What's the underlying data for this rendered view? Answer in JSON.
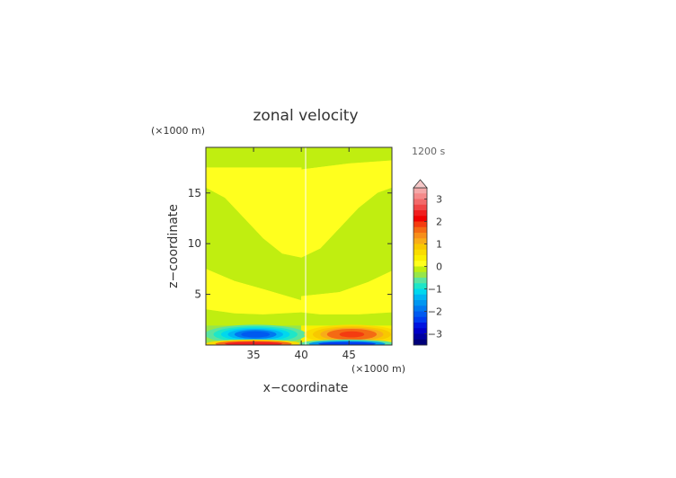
{
  "chart_data": {
    "type": "heatmap",
    "title": "zonal velocity",
    "time_label": "1200 s",
    "xlabel": "x−coordinate",
    "ylabel": "z−coordinate",
    "x_unit": "(×1000 m)",
    "y_unit": "(×1000 m)",
    "xlim": [
      30,
      49.5
    ],
    "ylim": [
      0,
      19.5
    ],
    "x_ticks": [
      35,
      40,
      45
    ],
    "y_ticks": [
      5,
      10,
      15
    ],
    "colorbar": {
      "tick_labels": [
        "3",
        "2",
        "1",
        "0",
        "−1",
        "−2",
        "−3"
      ],
      "tick_values": [
        3,
        2,
        1,
        0,
        -1,
        -2,
        -3
      ],
      "extend": "max",
      "levels": [
        {
          "lo": 3.25,
          "hi": 3.5,
          "color": "#f4a8a8"
        },
        {
          "lo": 3.0,
          "hi": 3.25,
          "color": "#f48a8a"
        },
        {
          "lo": 2.75,
          "hi": 3.0,
          "color": "#f26a6a"
        },
        {
          "lo": 2.5,
          "hi": 2.75,
          "color": "#f04646"
        },
        {
          "lo": 2.25,
          "hi": 2.5,
          "color": "#f01e1e"
        },
        {
          "lo": 2.0,
          "hi": 2.25,
          "color": "#f00000"
        },
        {
          "lo": 1.75,
          "hi": 2.0,
          "color": "#f43c10"
        },
        {
          "lo": 1.5,
          "hi": 1.75,
          "color": "#f46a14"
        },
        {
          "lo": 1.25,
          "hi": 1.5,
          "color": "#f78e1a"
        },
        {
          "lo": 1.0,
          "hi": 1.25,
          "color": "#f8ac18"
        },
        {
          "lo": 0.75,
          "hi": 1.0,
          "color": "#f8c800"
        },
        {
          "lo": 0.5,
          "hi": 0.75,
          "color": "#fadc00"
        },
        {
          "lo": 0.25,
          "hi": 0.5,
          "color": "#faf000"
        },
        {
          "lo": 0.0,
          "hi": 0.25,
          "color": "#ffff1e"
        },
        {
          "lo": -0.25,
          "hi": 0.0,
          "color": "#c0ee10"
        },
        {
          "lo": -0.5,
          "hi": -0.25,
          "color": "#96e64a"
        },
        {
          "lo": -0.75,
          "hi": -0.5,
          "color": "#5ae4a0"
        },
        {
          "lo": -1.0,
          "hi": -0.75,
          "color": "#1ee6c8"
        },
        {
          "lo": -1.25,
          "hi": -1.0,
          "color": "#00d8ee"
        },
        {
          "lo": -1.5,
          "hi": -1.25,
          "color": "#00b4f4"
        },
        {
          "lo": -1.75,
          "hi": -1.5,
          "color": "#0096f0"
        },
        {
          "lo": -2.0,
          "hi": -1.75,
          "color": "#0078f0"
        },
        {
          "lo": -2.25,
          "hi": -2.0,
          "color": "#005af0"
        },
        {
          "lo": -2.5,
          "hi": -2.25,
          "color": "#003cf0"
        },
        {
          "lo": -2.75,
          "hi": -2.5,
          "color": "#0014e0"
        },
        {
          "lo": -3.0,
          "hi": -2.75,
          "color": "#0000c8"
        },
        {
          "lo": -3.25,
          "hi": -3.0,
          "color": "#0000a0"
        },
        {
          "lo": -3.5,
          "hi": -3.25,
          "color": "#00007a"
        }
      ]
    },
    "regions": [
      {
        "name": "upper-left",
        "points": [
          [
            30,
            19.5
          ],
          [
            40,
            19.5
          ],
          [
            40,
            17.5
          ],
          [
            35,
            17.5
          ],
          [
            30,
            17.5
          ]
        ],
        "value": -0.1
      },
      {
        "name": "upper-right",
        "points": [
          [
            40,
            19.5
          ],
          [
            49.5,
            19.5
          ],
          [
            49.5,
            18.2
          ],
          [
            45,
            17.9
          ],
          [
            40,
            17.3
          ]
        ],
        "value": -0.1
      },
      {
        "name": "upper-mid",
        "points": [
          [
            30,
            17.5
          ],
          [
            35,
            17.5
          ],
          [
            40,
            17.5
          ],
          [
            40,
            17.3
          ],
          [
            45,
            17.9
          ],
          [
            49.5,
            18.2
          ],
          [
            49.5,
            15.5
          ],
          [
            48,
            15
          ],
          [
            46,
            13.5
          ],
          [
            44,
            11.5
          ],
          [
            42,
            9.5
          ],
          [
            40,
            8.6
          ],
          [
            38,
            9
          ],
          [
            36,
            10.5
          ],
          [
            34,
            12.5
          ],
          [
            32,
            14.5
          ],
          [
            30,
            15.5
          ]
        ],
        "value": 0.1
      },
      {
        "name": "mid-green-left",
        "points": [
          [
            30,
            15.5
          ],
          [
            32,
            14.5
          ],
          [
            34,
            12.5
          ],
          [
            36,
            10.5
          ],
          [
            38,
            9
          ],
          [
            40,
            8.6
          ],
          [
            40,
            4.4
          ],
          [
            36,
            5.5
          ],
          [
            33,
            6.3
          ],
          [
            30,
            7.5
          ]
        ],
        "value": -0.1
      },
      {
        "name": "mid-green-right",
        "points": [
          [
            40,
            8.6
          ],
          [
            42,
            9.5
          ],
          [
            44,
            11.5
          ],
          [
            46,
            13.5
          ],
          [
            48,
            15
          ],
          [
            49.5,
            15.5
          ],
          [
            49.5,
            7.3
          ],
          [
            47,
            6.2
          ],
          [
            44,
            5.2
          ],
          [
            40,
            4.8
          ]
        ],
        "value": -0.1
      },
      {
        "name": "low-yellow-left",
        "points": [
          [
            30,
            7.5
          ],
          [
            33,
            6.3
          ],
          [
            36,
            5.5
          ],
          [
            40,
            4.4
          ],
          [
            40,
            3.2
          ],
          [
            36,
            3.0
          ],
          [
            33,
            3.1
          ],
          [
            30,
            3.5
          ]
        ],
        "value": 0.1
      },
      {
        "name": "low-yellow-right",
        "points": [
          [
            40,
            4.8
          ],
          [
            44,
            5.2
          ],
          [
            47,
            6.2
          ],
          [
            49.5,
            7.3
          ],
          [
            49.5,
            3.2
          ],
          [
            46,
            3.0
          ],
          [
            42,
            3.0
          ],
          [
            40,
            3.2
          ]
        ],
        "value": 0.1
      },
      {
        "name": "low-green-left",
        "points": [
          [
            30,
            3.5
          ],
          [
            33,
            3.1
          ],
          [
            36,
            3.0
          ],
          [
            40,
            3.2
          ],
          [
            40,
            1.9
          ],
          [
            30,
            1.9
          ]
        ],
        "value": -0.1
      },
      {
        "name": "low-green-right",
        "points": [
          [
            40,
            3.2
          ],
          [
            42,
            3.0
          ],
          [
            46,
            3.0
          ],
          [
            49.5,
            3.2
          ],
          [
            49.5,
            1.9
          ],
          [
            40,
            1.9
          ]
        ],
        "value": -0.1
      },
      {
        "name": "surface-left",
        "points": [
          [
            30,
            1.9
          ],
          [
            40,
            1.9
          ],
          [
            40,
            0
          ],
          [
            30,
            0
          ]
        ],
        "value": -0.3
      },
      {
        "name": "surface-right",
        "points": [
          [
            40,
            1.9
          ],
          [
            49.5,
            1.9
          ],
          [
            49.5,
            0
          ],
          [
            40,
            0
          ]
        ],
        "value": 0.3
      }
    ],
    "cores": [
      {
        "cx": 35.2,
        "cy": 1.05,
        "rx": [
          5.3,
          4.4,
          3.6,
          2.9,
          2.2,
          1.5
        ],
        "ry": [
          0.95,
          0.8,
          0.67,
          0.55,
          0.43,
          0.3
        ],
        "values": [
          -0.6,
          -0.9,
          -1.2,
          -1.5,
          -1.8,
          -2.1
        ]
      },
      {
        "cx": 45.3,
        "cy": 1.05,
        "rx": [
          5.0,
          4.1,
          3.3,
          2.6,
          1.9,
          1.3
        ],
        "ry": [
          0.95,
          0.8,
          0.67,
          0.55,
          0.43,
          0.3
        ],
        "values": [
          0.6,
          0.9,
          1.2,
          1.5,
          1.7,
          1.9
        ]
      },
      {
        "cx": 35.0,
        "cy": 0.12,
        "rx": [
          5.0,
          4.0,
          3.0
        ],
        "ry": [
          0.42,
          0.3,
          0.18
        ],
        "values": [
          0.6,
          1.6,
          2.4
        ]
      },
      {
        "cx": 44.8,
        "cy": 0.12,
        "rx": [
          5.0,
          4.0,
          3.0
        ],
        "ry": [
          0.42,
          0.3,
          0.18
        ],
        "values": [
          -0.6,
          -1.6,
          -2.4
        ]
      }
    ]
  }
}
